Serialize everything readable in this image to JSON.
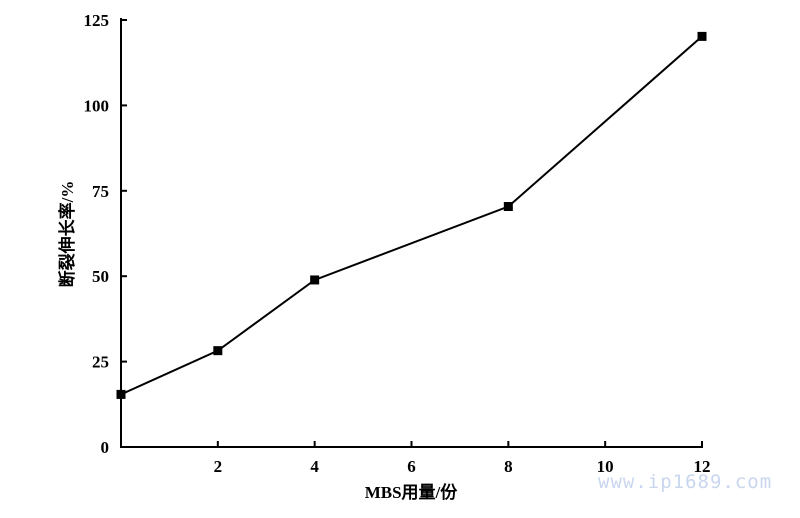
{
  "chart_data": {
    "type": "line",
    "title": "",
    "xlabel": "MBS用量/份",
    "ylabel": "断裂伸长率/%",
    "xlim": [
      0,
      12
    ],
    "ylim": [
      0,
      125
    ],
    "xticks": [
      2,
      4,
      6,
      8,
      10,
      12
    ],
    "yticks": [
      0,
      25,
      50,
      75,
      100,
      125
    ],
    "grid": false,
    "marker": "square",
    "series": [
      {
        "x": [
          0,
          2,
          4,
          8,
          12
        ],
        "y": [
          15.4,
          28.2,
          48.9,
          70.4,
          120.2
        ],
        "color": "#000000"
      }
    ]
  },
  "watermark": "www.ip1689.com"
}
